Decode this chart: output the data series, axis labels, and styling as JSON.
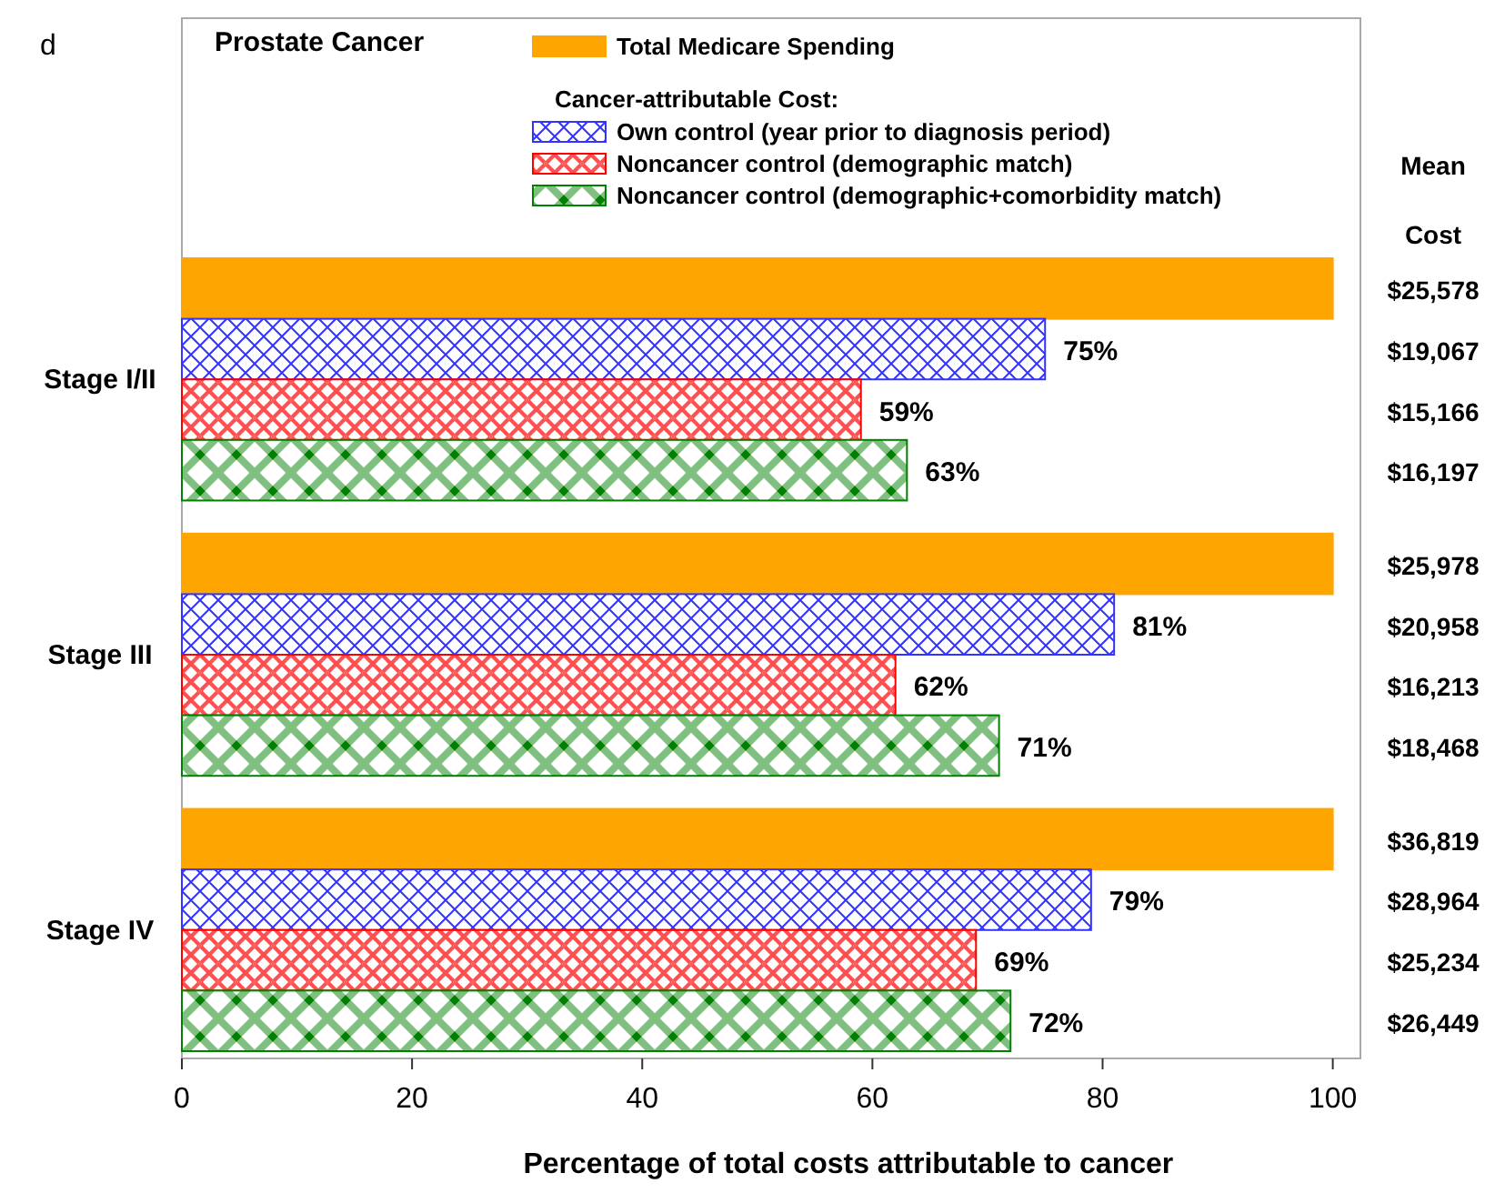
{
  "chart_data": {
    "type": "bar",
    "orientation": "horizontal",
    "title": "Prostate Cancer",
    "xlabel": "Percentage of total costs attributable to cancer",
    "legend_title": "Cancer-attributable Cost:",
    "legend": "top",
    "categories": [
      "Stage I/II",
      "Stage III",
      "Stage IV"
    ],
    "series": [
      {
        "name": "Total Medicare Spending",
        "color": "#ffa500",
        "values": [
          100,
          100,
          100
        ]
      },
      {
        "name": "Own control (year prior to diagnosis period)",
        "color": "#3333ff",
        "values": [
          75,
          81,
          79
        ],
        "value_labels": [
          "75%",
          "81%",
          "79%"
        ]
      },
      {
        "name": "Noncancer control (demographic match)",
        "color": "#ff0000",
        "values": [
          59,
          62,
          69
        ],
        "value_labels": [
          "59%",
          "62%",
          "69%"
        ]
      },
      {
        "name": "Noncancer control (demographic+comorbidity match)",
        "color": "#008000",
        "values": [
          63,
          71,
          72
        ],
        "value_labels": [
          "63%",
          "71%",
          "72%"
        ]
      }
    ],
    "xlim": [
      0,
      102.4
    ],
    "xticks": [
      0,
      20,
      40,
      60,
      80,
      100
    ],
    "annotations": [
      "d",
      "Mean Cost",
      "$25,578",
      "$19,067",
      "$15,166",
      "$16,197",
      "$25,978",
      "$20,958",
      "$16,213",
      "$18,468",
      "$36,819",
      "$28,964",
      "$25,234",
      "$26,449"
    ]
  }
}
